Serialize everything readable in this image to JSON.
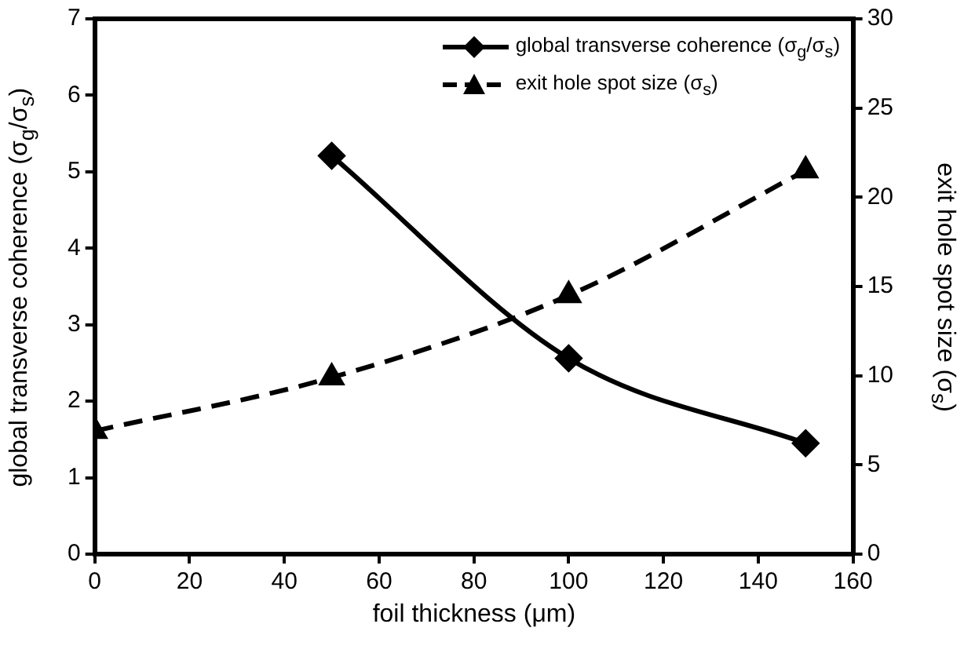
{
  "chart_data": {
    "type": "line",
    "xlabel": "foil thickness (μm)",
    "ylabel": "global transverse coherence (σ$_{g}$/σ$_{s}$)",
    "y2label": "exit hole spot size (σ$_{s}$)",
    "xlim": [
      0,
      160
    ],
    "xticks": [
      0,
      20,
      40,
      60,
      80,
      100,
      120,
      140,
      160
    ],
    "ylim": [
      0,
      7
    ],
    "yticks": [
      0,
      1,
      2,
      3,
      4,
      5,
      6,
      7
    ],
    "y2lim": [
      0,
      30
    ],
    "y2ticks": [
      0,
      5,
      10,
      15,
      20,
      25,
      30
    ],
    "grid": false,
    "legend": "top right",
    "series": [
      {
        "name": "global transverse coherence (σ$_{g}$/σ$_{s}$)",
        "color": "#000000",
        "x": [
          50,
          100,
          150
        ],
        "values": [
          5.21,
          2.56,
          1.45
        ],
        "marker": "diamond",
        "line_style": "solid"
      },
      {
        "name": "exit hole spot size (σ$_{s}$)",
        "color": "#000000",
        "x": [
          0,
          50,
          100,
          150
        ],
        "values": [
          6.9,
          9.9,
          14.5,
          21.5
        ],
        "axis": "y2",
        "marker": "triangle",
        "line_style": "dashed"
      }
    ]
  }
}
